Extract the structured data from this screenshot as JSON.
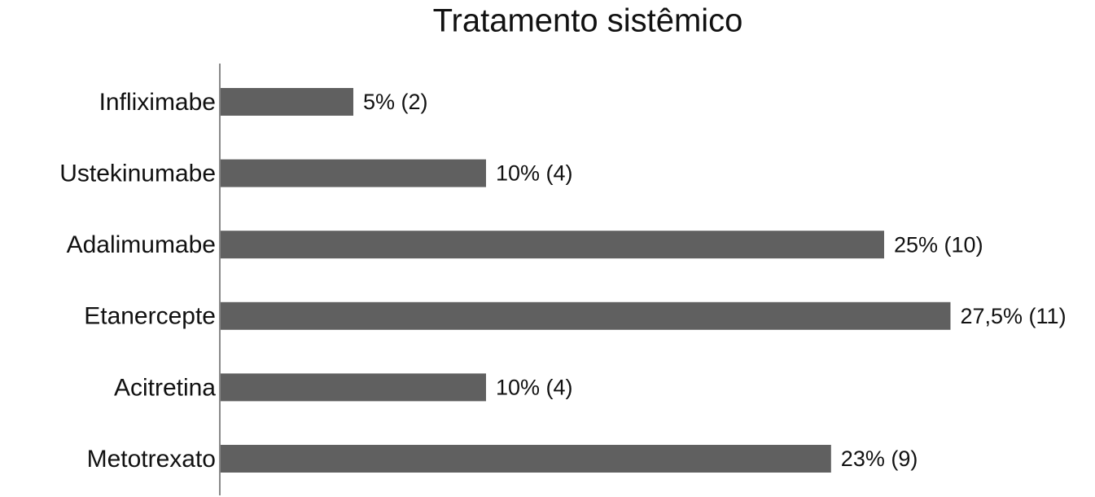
{
  "chart_data": {
    "type": "barh",
    "title": "Tratamento sistêmico",
    "categories": [
      "Infliximabe",
      "Ustekinumabe",
      "Adalimumabe",
      "Etanercepte",
      "Acitretina",
      "Metotrexato"
    ],
    "values": [
      5,
      10,
      25,
      27.5,
      10,
      23
    ],
    "value_labels": [
      "5% (2)",
      "10% (4)",
      "25% (10)",
      "27,5% (11)",
      "10% (4)",
      "23% (9)"
    ],
    "color": "#606060"
  }
}
